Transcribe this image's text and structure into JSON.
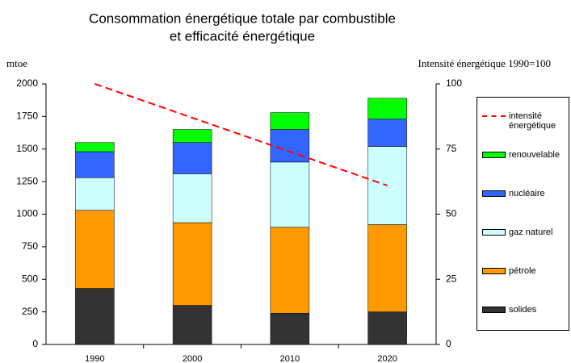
{
  "chart_data": {
    "type": "bar",
    "title": [
      "Consommation énergétique totale par combustible",
      "et efficacité énergétique"
    ],
    "y_label": "mtoe",
    "y2_label": "Intensité énergétique 1990=100",
    "categories": [
      "1990",
      "2000",
      "2010",
      "2020"
    ],
    "series": [
      {
        "name": "solides",
        "color": "#333333",
        "values": [
          430,
          300,
          240,
          250
        ]
      },
      {
        "name": "pétrole",
        "color": "#ff9900",
        "values": [
          600,
          635,
          660,
          670
        ]
      },
      {
        "name": "gaz naturel",
        "color": "#ccffff",
        "values": [
          250,
          375,
          500,
          600
        ]
      },
      {
        "name": "nucléaire",
        "color": "#3366ff",
        "values": [
          200,
          240,
          250,
          210
        ]
      },
      {
        "name": "renouvelable",
        "color": "#00ff00",
        "values": [
          70,
          100,
          130,
          160
        ]
      },
      {
        "name": "intensité énergétique",
        "color": "#ff0000",
        "type": "line",
        "axis": "y2",
        "values": [
          100,
          87,
          74,
          61
        ]
      }
    ],
    "ylim": [
      0,
      2000
    ],
    "yticks": [
      0,
      250,
      500,
      750,
      1000,
      1250,
      1500,
      1750,
      2000
    ],
    "y2lim": [
      0,
      100
    ],
    "y2ticks": [
      0,
      25,
      50,
      75,
      100
    ],
    "grid": false,
    "legend": "right"
  }
}
